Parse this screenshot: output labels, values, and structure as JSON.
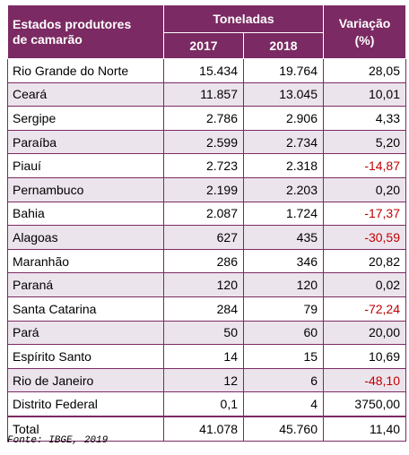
{
  "header": {
    "states": "Estados produtores\nde camarão",
    "tons": "Toneladas",
    "year1": "2017",
    "year2": "2018",
    "variation": "Variação\n(%)"
  },
  "rows": [
    {
      "state": "Rio Grande do Norte",
      "y2017": "15.434",
      "y2018": "19.764",
      "var": "28,05",
      "neg": false
    },
    {
      "state": "Ceará",
      "y2017": "11.857",
      "y2018": "13.045",
      "var": "10,01",
      "neg": false
    },
    {
      "state": "Sergipe",
      "y2017": "2.786",
      "y2018": "2.906",
      "var": "4,33",
      "neg": false
    },
    {
      "state": "Paraíba",
      "y2017": "2.599",
      "y2018": "2.734",
      "var": "5,20",
      "neg": false
    },
    {
      "state": "Piauí",
      "y2017": "2.723",
      "y2018": "2.318",
      "var": "-14,87",
      "neg": true
    },
    {
      "state": "Pernambuco",
      "y2017": "2.199",
      "y2018": "2.203",
      "var": "0,20",
      "neg": false
    },
    {
      "state": "Bahia",
      "y2017": "2.087",
      "y2018": "1.724",
      "var": "-17,37",
      "neg": true
    },
    {
      "state": "Alagoas",
      "y2017": "627",
      "y2018": "435",
      "var": "-30,59",
      "neg": true
    },
    {
      "state": "Maranhão",
      "y2017": "286",
      "y2018": "346",
      "var": "20,82",
      "neg": false
    },
    {
      "state": "Paraná",
      "y2017": "120",
      "y2018": "120",
      "var": "0,02",
      "neg": false
    },
    {
      "state": "Santa Catarina",
      "y2017": "284",
      "y2018": "79",
      "var": "-72,24",
      "neg": true
    },
    {
      "state": "Pará",
      "y2017": "50",
      "y2018": "60",
      "var": "20,00",
      "neg": false
    },
    {
      "state": "Espírito Santo",
      "y2017": "14",
      "y2018": "15",
      "var": "10,69",
      "neg": false
    },
    {
      "state": "Rio de Janeiro",
      "y2017": "12",
      "y2018": "6",
      "var": "-48,10",
      "neg": true
    },
    {
      "state": "Distrito Federal",
      "y2017": "0,1",
      "y2018": "4",
      "var": "3750,00",
      "neg": false
    }
  ],
  "total": {
    "label": "Total",
    "y2017": "41.078",
    "y2018": "45.760",
    "var": "11,40"
  },
  "source": "Fonte: IBGE, 2019",
  "colors": {
    "header_bg": "#7b2a63",
    "shade": "#ece4ec",
    "negative": "#c00000"
  }
}
